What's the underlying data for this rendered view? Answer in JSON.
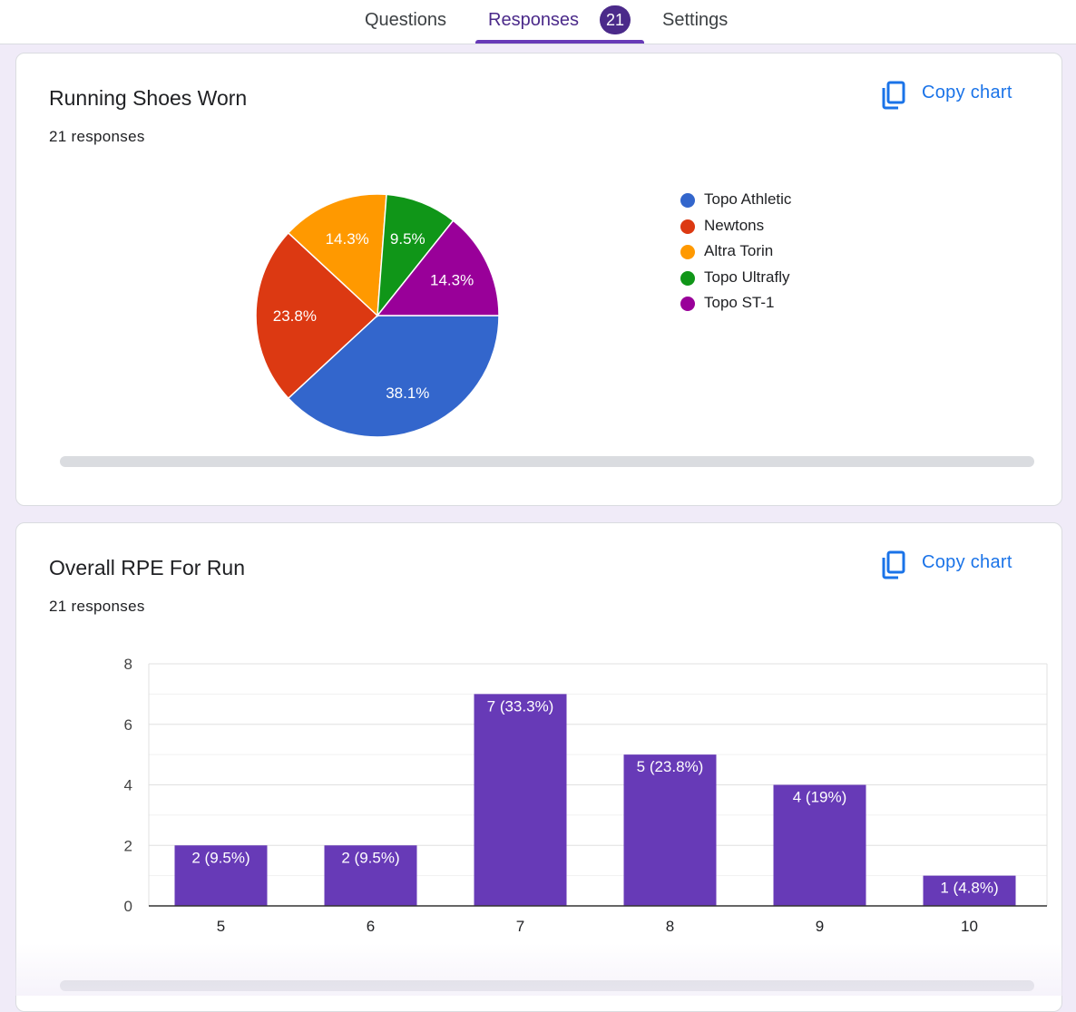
{
  "tabs": {
    "questions": "Questions",
    "responses": "Responses",
    "responses_count": "21",
    "settings": "Settings"
  },
  "colors": {
    "accent": "#673ab7",
    "link": "#1a73e8",
    "bar": "#673ab7"
  },
  "icons": {
    "copy": "copy-icon"
  },
  "cards": [
    {
      "title": "Running Shoes Worn",
      "subtitle": "21 responses",
      "copy_label": "Copy chart"
    },
    {
      "title": "Overall RPE For Run",
      "subtitle": "21 responses",
      "copy_label": "Copy chart"
    }
  ],
  "chart_data": [
    {
      "type": "pie",
      "title": "Running Shoes Worn",
      "legend_position": "right",
      "slices": [
        {
          "label": "Topo Athletic",
          "value": 8,
          "percent_label": "38.1%",
          "color": "#3366cc"
        },
        {
          "label": "Newtons",
          "value": 5,
          "percent_label": "23.8%",
          "color": "#dc3912"
        },
        {
          "label": "Altra Torin",
          "value": 3,
          "percent_label": "14.3%",
          "color": "#ff9900"
        },
        {
          "label": "Topo Ultrafly",
          "value": 2,
          "percent_label": "9.5%",
          "color": "#109618"
        },
        {
          "label": "Topo ST-1",
          "value": 3,
          "percent_label": "14.3%",
          "color": "#990099"
        }
      ]
    },
    {
      "type": "bar",
      "title": "Overall RPE For Run",
      "categories": [
        "5",
        "6",
        "7",
        "8",
        "9",
        "10"
      ],
      "values": [
        2,
        2,
        7,
        5,
        4,
        1
      ],
      "data_labels": [
        "2 (9.5%)",
        "2 (9.5%)",
        "7 (33.3%)",
        "5 (23.8%)",
        "4 (19%)",
        "1 (4.8%)"
      ],
      "ylim": [
        0,
        8
      ],
      "yticks": [
        "0",
        "2",
        "4",
        "6",
        "8"
      ],
      "grid": true,
      "color": "#673ab7"
    }
  ]
}
